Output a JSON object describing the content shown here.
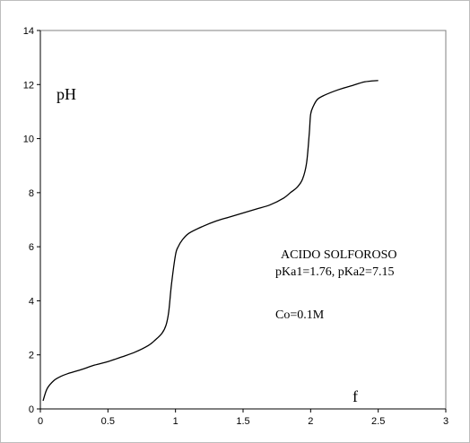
{
  "chart_data": {
    "type": "line",
    "title": "",
    "xlabel": "f",
    "ylabel": "pH",
    "xlim": [
      0,
      3
    ],
    "ylim": [
      0,
      14
    ],
    "x_ticks": [
      "0",
      "0.5",
      "1",
      "1.5",
      "2",
      "2.5",
      "3"
    ],
    "y_ticks": [
      "0",
      "2",
      "4",
      "6",
      "8",
      "10",
      "12",
      "14"
    ],
    "grid": false,
    "legend": false,
    "annotations": {
      "line1": "ACIDO SOLFOROSO",
      "line2": "pKa1=1.76, pKa2=7.15",
      "line3": "Co=0.1M"
    },
    "series": [
      {
        "color": "#000000",
        "x": [
          0.02,
          0.05,
          0.1,
          0.15,
          0.2,
          0.3,
          0.4,
          0.5,
          0.6,
          0.7,
          0.8,
          0.85,
          0.9,
          0.93,
          0.95,
          0.97,
          1.0,
          1.02,
          1.05,
          1.1,
          1.2,
          1.3,
          1.4,
          1.5,
          1.6,
          1.7,
          1.8,
          1.85,
          1.9,
          1.94,
          1.97,
          1.99,
          2.0,
          2.02,
          2.05,
          2.1,
          2.2,
          2.3,
          2.4,
          2.5
        ],
        "y": [
          0.3,
          0.75,
          1.05,
          1.2,
          1.3,
          1.45,
          1.62,
          1.75,
          1.92,
          2.1,
          2.35,
          2.55,
          2.8,
          3.1,
          3.6,
          4.6,
          5.7,
          6.0,
          6.25,
          6.5,
          6.75,
          6.95,
          7.1,
          7.25,
          7.4,
          7.55,
          7.8,
          8.0,
          8.2,
          8.5,
          9.1,
          10.2,
          10.9,
          11.2,
          11.45,
          11.6,
          11.8,
          11.95,
          12.1,
          12.15
        ]
      }
    ]
  }
}
